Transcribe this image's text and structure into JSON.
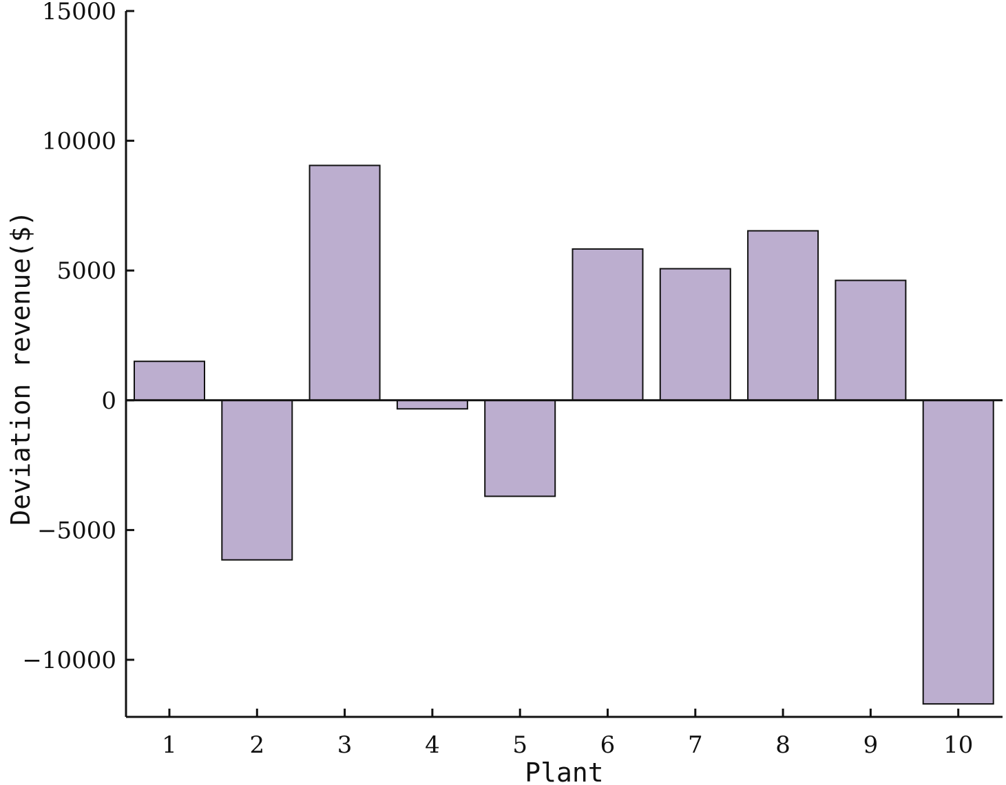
{
  "chart_data": {
    "type": "bar",
    "title": "",
    "xlabel": "Plant",
    "ylabel": "Deviation revenue($)",
    "categories": [
      "1",
      "2",
      "3",
      "4",
      "5",
      "6",
      "7",
      "8",
      "9",
      "10"
    ],
    "values": [
      1500,
      -6150,
      9050,
      -330,
      -3700,
      5830,
      5070,
      6530,
      4620,
      -11700
    ],
    "ylim": [
      -12200,
      15000
    ],
    "yticks": [
      15000,
      10000,
      5000,
      0,
      -5000,
      -10000
    ],
    "ytick_labels": [
      "15000",
      "10000",
      "5000",
      "0",
      "−5000",
      "−10000"
    ],
    "grid": false,
    "legend": "none",
    "bar_color": "#bcaecf",
    "bar_edge_color": "#111111"
  }
}
